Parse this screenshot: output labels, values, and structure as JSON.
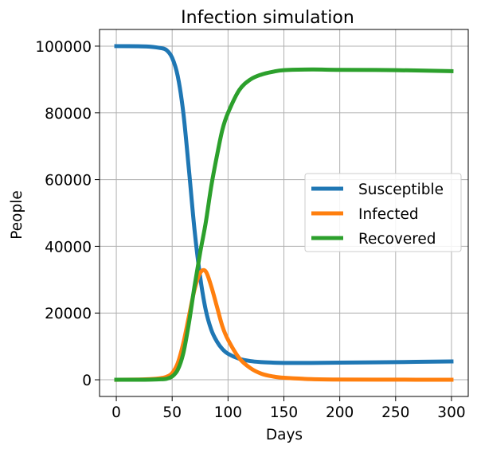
{
  "chart_data": {
    "type": "line",
    "title": "Infection simulation",
    "xlabel": "Days",
    "ylabel": "People",
    "xlim": [
      -15,
      315
    ],
    "ylim": [
      -5000,
      105000
    ],
    "xticks": [
      0,
      50,
      100,
      150,
      200,
      250,
      300
    ],
    "yticks": [
      0,
      20000,
      40000,
      60000,
      80000,
      100000
    ],
    "grid": true,
    "legend_position": "center-right",
    "x": [
      0,
      20,
      30,
      40,
      45,
      50,
      55,
      60,
      65,
      70,
      75,
      80,
      85,
      90,
      95,
      100,
      110,
      120,
      130,
      140,
      150,
      175,
      200,
      250,
      300
    ],
    "series": [
      {
        "name": "Susceptible",
        "color": "#1f77b4",
        "values": [
          100000,
          99950,
          99850,
          99400,
          98800,
          96500,
          91000,
          80000,
          63000,
          45000,
          31000,
          21000,
          15000,
          11500,
          9200,
          7800,
          6300,
          5600,
          5300,
          5150,
          5050,
          5050,
          5150,
          5300,
          5500
        ]
      },
      {
        "name": "Infected",
        "color": "#ff7f0e",
        "values": [
          0,
          60,
          180,
          500,
          900,
          2000,
          5000,
          11000,
          19000,
          27000,
          32000,
          32500,
          28000,
          22000,
          16000,
          12000,
          6500,
          3500,
          1800,
          1000,
          600,
          200,
          80,
          30,
          20
        ]
      },
      {
        "name": "Recovered",
        "color": "#2ca02c",
        "values": [
          0,
          10,
          50,
          150,
          300,
          1000,
          3000,
          8000,
          17000,
          28000,
          38000,
          47000,
          58000,
          67000,
          75000,
          80000,
          86800,
          90000,
          91500,
          92300,
          92800,
          93000,
          92900,
          92800,
          92500
        ]
      }
    ]
  }
}
